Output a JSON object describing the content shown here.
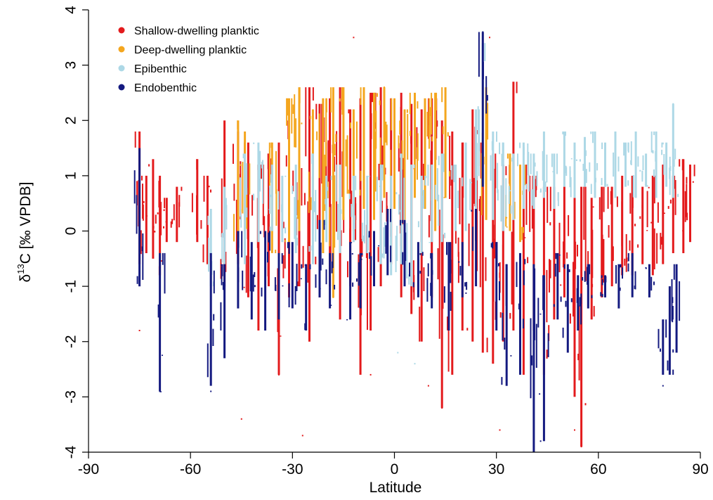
{
  "chart_data": {
    "type": "scatter",
    "title": "",
    "xlabel": "Latitude",
    "ylabel": {
      "delta": "δ",
      "superscript": "13",
      "rest": "C [‰ VPDB]"
    },
    "xlim": [
      -90,
      90
    ],
    "ylim": [
      -4,
      4
    ],
    "xticks": [
      -90,
      -60,
      -30,
      0,
      30,
      60,
      90
    ],
    "yticks": [
      -4,
      -3,
      -2,
      -1,
      0,
      1,
      2,
      3,
      4
    ],
    "grid": false,
    "legend_position": "top-left",
    "series": [
      {
        "name": "Shallow-dwelling planktic",
        "color": "#e31a1c",
        "columns": [
          [
            -75,
            -0.6,
            1.8
          ],
          [
            -73,
            -0.4,
            1.0
          ],
          [
            -71,
            -0.5,
            1.3
          ],
          [
            -69,
            -0.8,
            1.0
          ],
          [
            -67,
            -0.2,
            0.6
          ],
          [
            -64,
            -0.2,
            0.8
          ],
          [
            -58,
            -0.2,
            1.3
          ],
          [
            -55,
            -0.6,
            1.0
          ],
          [
            -50,
            -1.0,
            2.0
          ],
          [
            -46,
            -0.6,
            1.8
          ],
          [
            -43,
            -1.2,
            1.6
          ],
          [
            -40,
            -1.8,
            1.2
          ],
          [
            -37,
            -1.0,
            1.4
          ],
          [
            -34,
            -2.6,
            1.6
          ],
          [
            -31,
            -1.2,
            2.0
          ],
          [
            -28,
            -1.0,
            2.2
          ],
          [
            -25,
            -2.0,
            2.6
          ],
          [
            -22,
            -1.2,
            2.3
          ],
          [
            -19,
            -1.0,
            2.4
          ],
          [
            -16,
            -1.6,
            2.6
          ],
          [
            -13,
            -1.0,
            2.2
          ],
          [
            -10,
            -2.6,
            2.4
          ],
          [
            -7,
            -1.8,
            2.5
          ],
          [
            -4,
            -1.0,
            2.6
          ],
          [
            -1,
            -0.6,
            2.4
          ],
          [
            2,
            -1.2,
            2.5
          ],
          [
            5,
            -1.5,
            2.3
          ],
          [
            8,
            -2.0,
            2.2
          ],
          [
            11,
            -1.2,
            2.4
          ],
          [
            14,
            -3.2,
            2.0
          ],
          [
            17,
            -2.6,
            1.8
          ],
          [
            20,
            -1.8,
            1.6
          ],
          [
            23,
            -2.0,
            2.2
          ],
          [
            26,
            -2.2,
            1.6
          ],
          [
            29,
            -2.4,
            1.4
          ],
          [
            32,
            -2.0,
            1.2
          ],
          [
            35,
            -1.8,
            2.7
          ],
          [
            38,
            -2.6,
            1.2
          ],
          [
            41,
            -1.8,
            1.0
          ],
          [
            44,
            -2.6,
            0.8
          ],
          [
            47,
            -1.6,
            0.8
          ],
          [
            50,
            -1.2,
            0.8
          ],
          [
            53,
            -3.0,
            0.6
          ],
          [
            55,
            -3.9,
            0.8
          ],
          [
            58,
            -1.6,
            0.6
          ],
          [
            61,
            -1.2,
            0.8
          ],
          [
            64,
            -1.0,
            0.8
          ],
          [
            67,
            -0.8,
            1.0
          ],
          [
            70,
            -0.8,
            1.0
          ],
          [
            73,
            -0.6,
            0.8
          ],
          [
            76,
            -0.8,
            1.0
          ],
          [
            79,
            -0.6,
            1.2
          ],
          [
            82,
            -0.4,
            1.0
          ],
          [
            85,
            -0.4,
            1.3
          ],
          [
            87,
            -0.2,
            1.2
          ]
        ],
        "outliers": [
          [
            -75,
            -1.8
          ],
          [
            -45,
            -3.4
          ],
          [
            -34,
            -2.6
          ],
          [
            -27,
            -3.7
          ],
          [
            -12,
            3.5
          ],
          [
            -7,
            -2.6
          ],
          [
            10,
            -2.8
          ],
          [
            14,
            -3.2
          ],
          [
            28,
            3.5
          ],
          [
            31,
            -3.6
          ],
          [
            53,
            -3.6
          ],
          [
            55,
            -3.9
          ]
        ]
      },
      {
        "name": "Deep-dwelling planktic",
        "color": "#f4a61e",
        "columns": [
          [
            -46,
            -0.2,
            2.0
          ],
          [
            -44,
            0.0,
            1.8
          ],
          [
            -36,
            -0.4,
            1.6
          ],
          [
            -31,
            -0.2,
            2.4
          ],
          [
            -28,
            0.0,
            2.6
          ],
          [
            -24,
            0.2,
            2.2
          ],
          [
            -21,
            -0.4,
            2.4
          ],
          [
            -18,
            -1.2,
            2.6
          ],
          [
            -15,
            0.2,
            2.6
          ],
          [
            -12,
            0.0,
            2.2
          ],
          [
            -9,
            0.4,
            2.6
          ],
          [
            -6,
            0.2,
            2.5
          ],
          [
            -3,
            0.6,
            2.6
          ],
          [
            0,
            0.4,
            2.4
          ],
          [
            3,
            0.2,
            2.2
          ],
          [
            6,
            0.6,
            2.5
          ],
          [
            9,
            0.4,
            2.4
          ],
          [
            12,
            0.0,
            2.5
          ],
          [
            15,
            0.6,
            2.6
          ],
          [
            27,
            0.2,
            2.6
          ],
          [
            34,
            0.0,
            1.4
          ],
          [
            37,
            -0.2,
            1.2
          ]
        ],
        "outliers": [
          [
            -18,
            -1.2
          ],
          [
            -3,
            2.6
          ]
        ]
      },
      {
        "name": "Epibenthic",
        "color": "#add8e6",
        "columns": [
          [
            -54,
            -1.0,
            0.4
          ],
          [
            -50,
            -0.6,
            0.8
          ],
          [
            -44,
            -0.6,
            1.4
          ],
          [
            -40,
            -0.2,
            1.6
          ],
          [
            -36,
            0.0,
            1.2
          ],
          [
            -33,
            -0.2,
            1.0
          ],
          [
            -29,
            -0.4,
            1.2
          ],
          [
            -24,
            -0.6,
            1.4
          ],
          [
            -20,
            -0.2,
            1.0
          ],
          [
            -16,
            -0.4,
            1.2
          ],
          [
            -12,
            -0.2,
            1.0
          ],
          [
            -8,
            -0.4,
            1.0
          ],
          [
            -4,
            -0.6,
            1.2
          ],
          [
            -1,
            -0.8,
            1.0
          ],
          [
            2,
            -0.6,
            1.4
          ],
          [
            5,
            -1.0,
            1.2
          ],
          [
            8,
            -0.4,
            1.0
          ],
          [
            11,
            -0.2,
            1.2
          ],
          [
            14,
            -0.2,
            1.4
          ],
          [
            18,
            0.0,
            1.2
          ],
          [
            21,
            0.0,
            1.6
          ],
          [
            24,
            0.2,
            2.2
          ],
          [
            26,
            0.8,
            3.4
          ],
          [
            29,
            0.2,
            1.8
          ],
          [
            32,
            0.0,
            1.6
          ],
          [
            35,
            0.2,
            1.4
          ],
          [
            38,
            0.4,
            1.6
          ],
          [
            41,
            0.4,
            1.4
          ],
          [
            44,
            0.6,
            1.8
          ],
          [
            47,
            0.4,
            1.4
          ],
          [
            50,
            0.8,
            1.8
          ],
          [
            53,
            0.6,
            1.6
          ],
          [
            56,
            0.8,
            1.7
          ],
          [
            59,
            0.6,
            1.8
          ],
          [
            62,
            0.8,
            1.6
          ],
          [
            65,
            0.6,
            1.8
          ],
          [
            68,
            0.8,
            1.6
          ],
          [
            71,
            0.6,
            1.8
          ],
          [
            74,
            0.8,
            1.4
          ],
          [
            77,
            0.6,
            1.8
          ],
          [
            80,
            0.8,
            1.6
          ],
          [
            82,
            0.6,
            2.3
          ]
        ],
        "outliers": [
          [
            -54,
            -1.1
          ],
          [
            1,
            -2.2
          ],
          [
            6,
            -2.4
          ],
          [
            26,
            3.4
          ],
          [
            82,
            2.3
          ]
        ]
      },
      {
        "name": "Endobenthic",
        "color": "#141a80",
        "columns": [
          [
            -75,
            -1.0,
            1.5
          ],
          [
            -69,
            -2.9,
            -0.4
          ],
          [
            -54,
            -2.8,
            -0.4
          ],
          [
            -50,
            -2.3,
            -0.6
          ],
          [
            -46,
            -1.4,
            0.0
          ],
          [
            -42,
            -1.6,
            -0.2
          ],
          [
            -38,
            -1.8,
            0.0
          ],
          [
            -34,
            -1.6,
            -0.4
          ],
          [
            -30,
            -1.4,
            -0.2
          ],
          [
            -26,
            -1.8,
            -0.6
          ],
          [
            -22,
            -1.2,
            0.2
          ],
          [
            -19,
            -1.4,
            -0.4
          ],
          [
            -13,
            -1.6,
            -0.2
          ],
          [
            -10,
            -1.4,
            -0.4
          ],
          [
            -6,
            -1.0,
            0.0
          ],
          [
            -2,
            -0.8,
            0.4
          ],
          [
            3,
            -1.0,
            0.2
          ],
          [
            7,
            -1.2,
            -0.2
          ],
          [
            11,
            -1.4,
            -0.4
          ],
          [
            16,
            -1.8,
            -0.2
          ],
          [
            20,
            -1.2,
            -0.2
          ],
          [
            24,
            -1.0,
            0.4
          ],
          [
            26,
            0.8,
            3.6
          ],
          [
            30,
            -1.8,
            -0.2
          ],
          [
            33,
            -2.8,
            -0.6
          ],
          [
            37,
            -2.6,
            -0.4
          ],
          [
            41,
            -4.0,
            -0.6
          ],
          [
            44,
            -3.8,
            -0.8
          ],
          [
            48,
            -1.6,
            -0.4
          ],
          [
            51,
            -2.2,
            -0.6
          ],
          [
            54,
            -1.8,
            -0.8
          ],
          [
            57,
            -1.4,
            -0.6
          ],
          [
            62,
            -1.2,
            -0.8
          ],
          [
            66,
            -1.4,
            -0.6
          ],
          [
            70,
            -1.2,
            -0.4
          ],
          [
            75,
            -1.2,
            -0.6
          ],
          [
            79,
            -2.6,
            -1.6
          ],
          [
            81,
            -2.6,
            -1.0
          ],
          [
            83,
            -2.2,
            -0.6
          ]
        ],
        "outliers": [
          [
            -69,
            -2.9
          ],
          [
            -54,
            -2.9
          ],
          [
            41,
            -3.9
          ],
          [
            43,
            -3.8
          ],
          [
            79,
            -2.8
          ],
          [
            26,
            3.6
          ]
        ]
      }
    ]
  }
}
